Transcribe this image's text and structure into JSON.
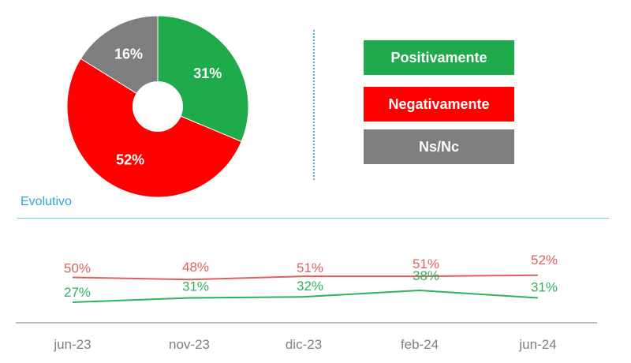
{
  "chart_data": [
    {
      "type": "pie",
      "variant": "donut",
      "labels": [
        "Positivamente",
        "Negativamente",
        "Ns/Nc"
      ],
      "values": [
        31,
        52,
        16
      ],
      "value_labels": [
        "31%",
        "52%",
        "16%"
      ],
      "colors": [
        "#1faa4b",
        "#ff0000",
        "#7f7f7f"
      ]
    },
    {
      "type": "line",
      "title": "Evolutivo",
      "categories": [
        "jun-23",
        "nov-23",
        "dic-23",
        "feb-24",
        "jun-24"
      ],
      "series": [
        {
          "name": "Negativamente",
          "values": [
            50,
            48,
            51,
            51,
            52
          ],
          "labels": [
            "50%",
            "48%",
            "51%",
            "51%",
            "52%"
          ],
          "color": "#e06060"
        },
        {
          "name": "Positivamente",
          "values": [
            27,
            31,
            32,
            38,
            31
          ],
          "labels": [
            "27%",
            "31%",
            "32%",
            "38%",
            "31%"
          ],
          "color": "#2db35a"
        }
      ]
    }
  ]
}
